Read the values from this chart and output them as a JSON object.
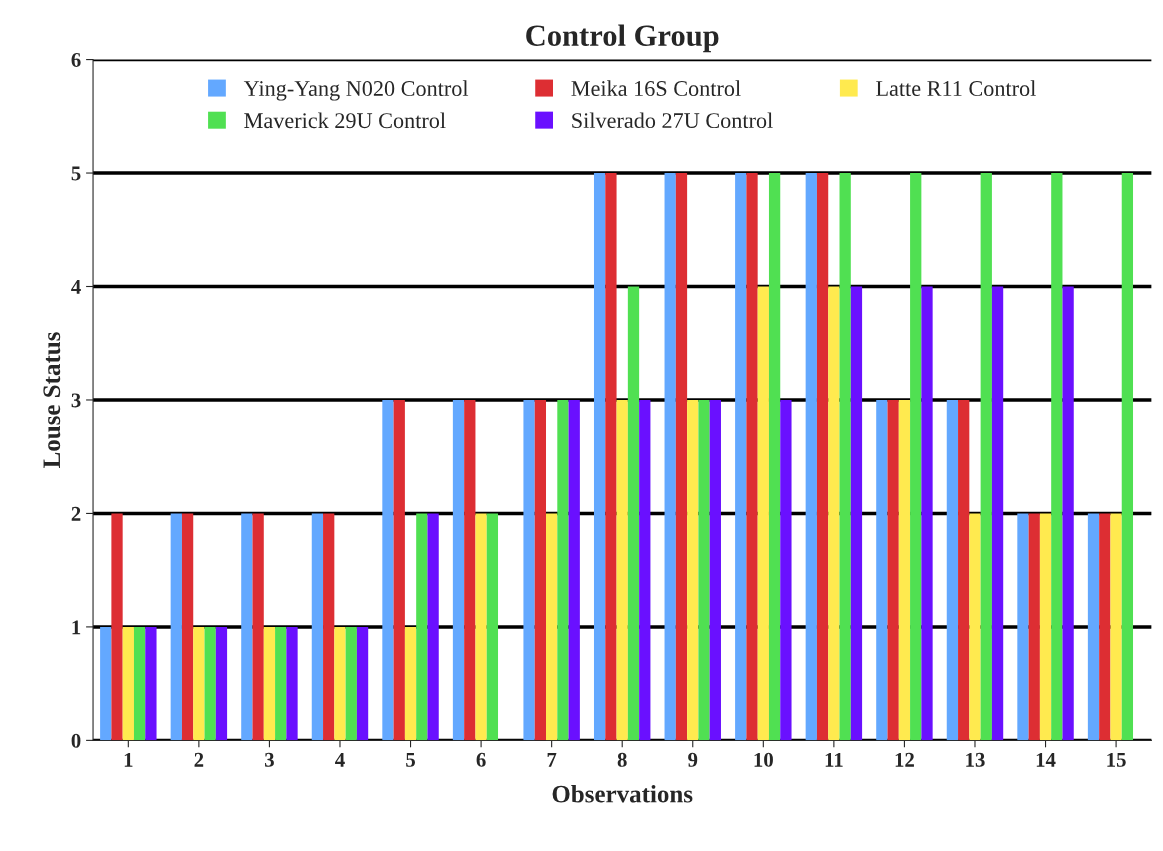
{
  "chart_data": {
    "type": "bar",
    "title": "Control Group",
    "xlabel": "Observations",
    "ylabel": "Louse Status",
    "categories": [
      "1",
      "2",
      "3",
      "4",
      "5",
      "6",
      "7",
      "8",
      "9",
      "10",
      "11",
      "12",
      "13",
      "14",
      "15"
    ],
    "series": [
      {
        "name": "Ying-Yang N020 Control",
        "color": "#63a8ff",
        "values": [
          1,
          2,
          2,
          2,
          3,
          3,
          3,
          5,
          5,
          5,
          5,
          3,
          3,
          2,
          2
        ]
      },
      {
        "name": "Meika 16S Control",
        "color": "#dd2e33",
        "values": [
          2,
          2,
          2,
          2,
          3,
          3,
          3,
          5,
          5,
          5,
          5,
          3,
          3,
          2,
          2
        ]
      },
      {
        "name": "Latte R11 Control",
        "color": "#ffea4f",
        "values": [
          1,
          1,
          1,
          1,
          1,
          2,
          2,
          3,
          3,
          4,
          4,
          3,
          2,
          2,
          2
        ]
      },
      {
        "name": "Maverick 29U Control",
        "color": "#50e052",
        "values": [
          1,
          1,
          1,
          1,
          2,
          2,
          3,
          4,
          3,
          5,
          5,
          5,
          5,
          5,
          5
        ]
      },
      {
        "name": "Silverado 27U Control",
        "color": "#6a10ff",
        "values": [
          1,
          1,
          1,
          1,
          2,
          null,
          3,
          3,
          3,
          3,
          4,
          4,
          4,
          4,
          null
        ]
      }
    ],
    "ylim": [
      0,
      6
    ],
    "yticks": [
      0,
      1,
      2,
      3,
      4,
      5,
      6
    ],
    "grid": "y",
    "legend": "top"
  }
}
